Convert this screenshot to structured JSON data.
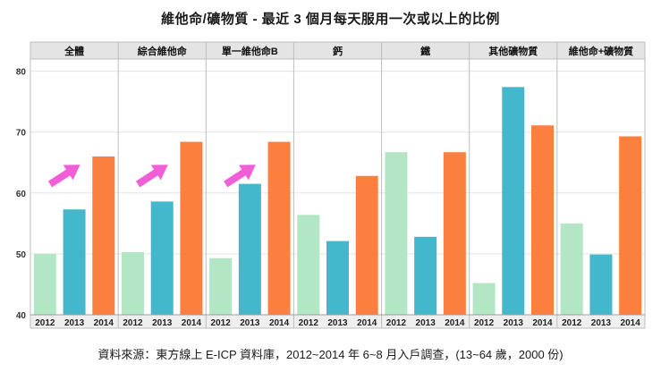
{
  "title": "維他命/礦物質 - 最近 3 個月每天服用一次或以上的比例",
  "source": "資料來源：東方線上 E-ICP 資料庫，2012~2014 年 6~8 月入戶調查，(13~64 歲，2000 份)",
  "chart_data": {
    "type": "bar",
    "ylim": [
      40,
      82
    ],
    "yticks": [
      40,
      50,
      60,
      70,
      80
    ],
    "grid": true,
    "years": [
      "2012",
      "2013",
      "2014"
    ],
    "colors": {
      "2012": "#b3e6c4",
      "2013": "#43b8cc",
      "2014": "#fb7f3e",
      "arrow": "#f25ed8"
    },
    "panels": [
      {
        "name": "全體",
        "values": [
          50.0,
          57.3,
          66.0
        ],
        "arrow": true
      },
      {
        "name": "綜合維他命",
        "values": [
          50.3,
          58.6,
          68.4
        ],
        "arrow": true
      },
      {
        "name": "單一維他命B",
        "values": [
          49.3,
          61.5,
          68.4
        ],
        "arrow": true
      },
      {
        "name": "鈣",
        "values": [
          56.4,
          52.1,
          62.8
        ],
        "arrow": false
      },
      {
        "name": "鐵",
        "values": [
          66.7,
          52.8,
          66.7
        ],
        "arrow": false
      },
      {
        "name": "其他礦物質",
        "values": [
          45.2,
          77.4,
          71.1
        ],
        "arrow": false
      },
      {
        "name": "維他命+礦物質",
        "values": [
          55.0,
          49.9,
          69.3
        ],
        "arrow": false
      }
    ]
  }
}
